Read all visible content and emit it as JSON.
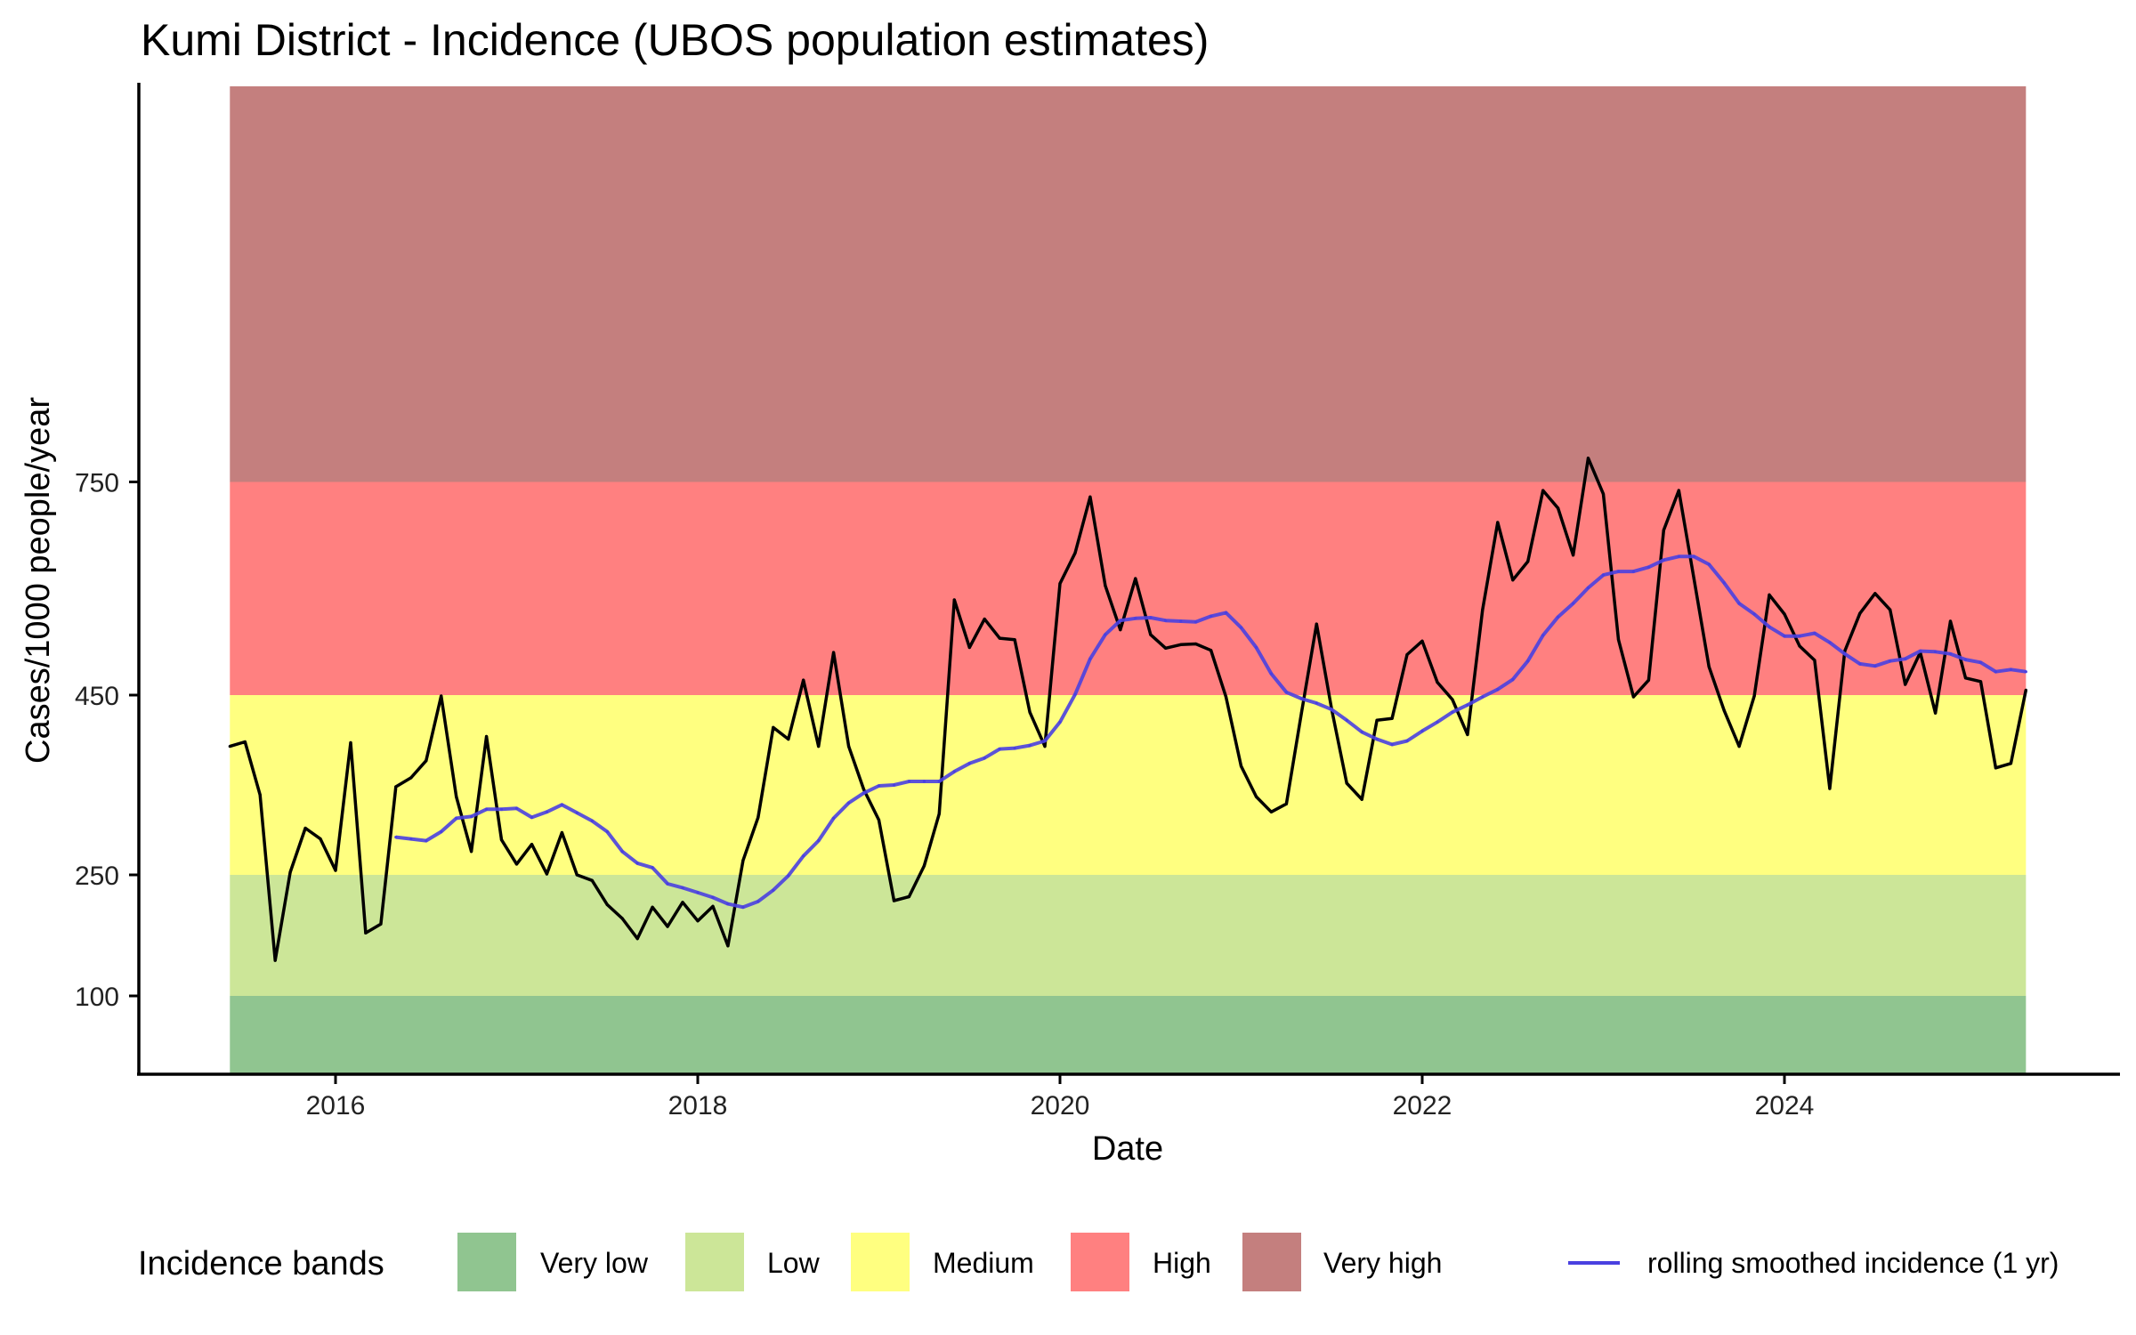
{
  "chart_data": {
    "type": "line",
    "title": "Kumi District - Incidence (UBOS population estimates)",
    "xlabel": "Date",
    "ylabel": "Cases/1000 people/year",
    "x_ticks": [
      "2016",
      "2018",
      "2020",
      "2022",
      "2024"
    ],
    "y_ticks": [
      "100",
      "250",
      "450",
      "750"
    ],
    "ylim": [
      0,
      1300
    ],
    "xlim": [
      "2015-06",
      "2025-05"
    ],
    "grid": false,
    "legend": {
      "title": "Incidence bands",
      "position": "bottom",
      "items": [
        {
          "label": "Very low",
          "color": "#90C590"
        },
        {
          "label": "Low",
          "color": "#CCE698"
        },
        {
          "label": "Medium",
          "color": "#FFFF80"
        },
        {
          "label": "High",
          "color": "#FF8080"
        },
        {
          "label": "Very high",
          "color": "#C47F7E"
        }
      ],
      "line_item": {
        "label": "rolling smoothed incidence (1 yr)",
        "color": "#4A40E0"
      }
    },
    "bands": [
      {
        "name": "Very low",
        "from": 0,
        "to": 100,
        "color": "#90C590"
      },
      {
        "name": "Low",
        "from": 100,
        "to": 250,
        "color": "#CCE698"
      },
      {
        "name": "Medium",
        "from": 250,
        "to": 450,
        "color": "#FFFF80"
      },
      {
        "name": "High",
        "from": 450,
        "to": 750,
        "color": "#FF8080"
      },
      {
        "name": "Very high",
        "from": 750,
        "to": 1300,
        "color": "#C47F7E"
      }
    ],
    "x": [
      "2015-06",
      "2015-07",
      "2015-08",
      "2015-09",
      "2015-10",
      "2015-11",
      "2015-12",
      "2016-01",
      "2016-02",
      "2016-03",
      "2016-04",
      "2016-05",
      "2016-06",
      "2016-07",
      "2016-08",
      "2016-09",
      "2016-10",
      "2016-11",
      "2016-12",
      "2017-01",
      "2017-02",
      "2017-03",
      "2017-04",
      "2017-05",
      "2017-06",
      "2017-07",
      "2017-08",
      "2017-09",
      "2017-10",
      "2017-11",
      "2017-12",
      "2018-01",
      "2018-02",
      "2018-03",
      "2018-04",
      "2018-05",
      "2018-06",
      "2018-07",
      "2018-08",
      "2018-09",
      "2018-10",
      "2018-11",
      "2018-12",
      "2019-01",
      "2019-02",
      "2019-03",
      "2019-04",
      "2019-05",
      "2019-06",
      "2019-07",
      "2019-08",
      "2019-09",
      "2019-10",
      "2019-11",
      "2019-12",
      "2020-01",
      "2020-02",
      "2020-03",
      "2020-04",
      "2020-05",
      "2020-06",
      "2020-07",
      "2020-08",
      "2020-09",
      "2020-10",
      "2020-11",
      "2020-12",
      "2021-01",
      "2021-02",
      "2021-03",
      "2021-04",
      "2021-05",
      "2021-06",
      "2021-07",
      "2021-08",
      "2021-09",
      "2021-10",
      "2021-11",
      "2021-12",
      "2022-01",
      "2022-02",
      "2022-03",
      "2022-04",
      "2022-05",
      "2022-06",
      "2022-07",
      "2022-08",
      "2022-09",
      "2022-10",
      "2022-11",
      "2022-12",
      "2023-01",
      "2023-02",
      "2023-03",
      "2023-04",
      "2023-05",
      "2023-06",
      "2023-07",
      "2023-08",
      "2023-09",
      "2023-10",
      "2023-11",
      "2023-12",
      "2024-01",
      "2024-02",
      "2024-03",
      "2024-04",
      "2024-05",
      "2024-06",
      "2024-07",
      "2024-08",
      "2024-09",
      "2024-10",
      "2024-11",
      "2024-12",
      "2025-01",
      "2025-02",
      "2025-03",
      "2025-04",
      "2025-05"
    ],
    "series": [
      {
        "name": "incidence",
        "color": "#000000",
        "values": [
          393,
          398,
          339,
          144,
          253,
          302,
          290,
          255,
          397,
          178,
          189,
          348,
          358,
          377,
          449,
          337,
          276,
          404,
          289,
          262,
          284,
          251,
          297,
          250,
          243,
          213,
          196,
          171,
          210,
          186,
          216,
          193,
          211,
          162,
          266,
          314,
          414,
          401,
          471,
          393,
          510,
          393,
          345,
          311,
          218,
          223,
          260,
          318,
          584,
          517,
          557,
          530,
          528,
          431,
          393,
          607,
          650,
          729,
          604,
          542,
          614,
          535,
          516,
          521,
          522,
          513,
          448,
          371,
          337,
          320,
          329,
          430,
          550,
          434,
          352,
          334,
          422,
          424,
          507,
          526,
          468,
          445,
          406,
          570,
          693,
          612,
          638,
          738,
          713,
          647,
          783,
          733,
          528,
          448,
          471,
          682,
          738,
          614,
          490,
          433,
          393,
          449,
          591,
          564,
          519,
          499,
          346,
          512,
          565,
          593,
          570,
          465,
          510,
          430,
          554,
          474,
          469,
          369,
          374,
          457
        ]
      },
      {
        "name": "rolling smoothed incidence (1 yr)",
        "color": "#4A40E0",
        "values": [
          null,
          null,
          null,
          null,
          null,
          null,
          null,
          null,
          null,
          null,
          null,
          292,
          290,
          288,
          298,
          313,
          315,
          323,
          323,
          324,
          314,
          320,
          328,
          319,
          310,
          298,
          276,
          263,
          258,
          239,
          234,
          228,
          222,
          214,
          210,
          217,
          231,
          249,
          271,
          288,
          313,
          330,
          341,
          349,
          350,
          354,
          354,
          354,
          365,
          374,
          380,
          390,
          391,
          394,
          399,
          420,
          451,
          501,
          535,
          555,
          558,
          559,
          555,
          554,
          553,
          561,
          566,
          545,
          517,
          480,
          454,
          446,
          441,
          434,
          422,
          409,
          401,
          395,
          399,
          410,
          420,
          431,
          439,
          448,
          458,
          472,
          498,
          534,
          560,
          579,
          601,
          619,
          624,
          624,
          630,
          640,
          645,
          645,
          634,
          608,
          579,
          564,
          546,
          533,
          533,
          537,
          524,
          508,
          494,
          491,
          498,
          501,
          512,
          511,
          508,
          500,
          496,
          483,
          486,
          483
        ]
      }
    ]
  }
}
